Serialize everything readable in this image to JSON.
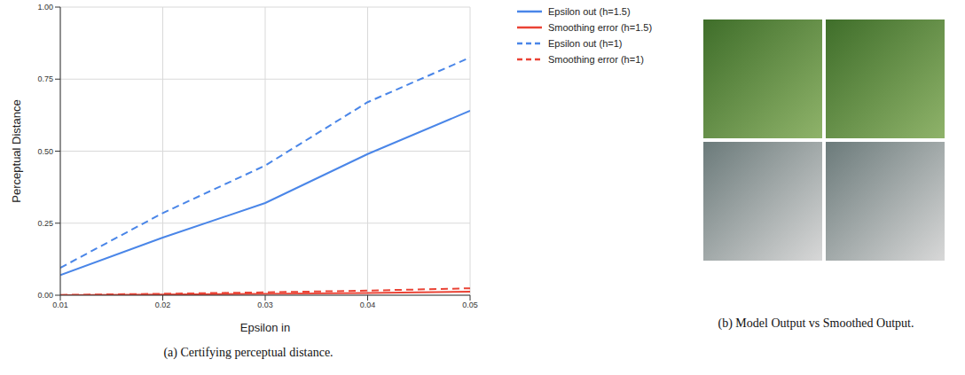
{
  "chart_data": {
    "type": "line",
    "title": "(a) Certifying perceptual distance.",
    "x_label": "Epsilon in",
    "y_label": "Perceptual Distance",
    "x": [
      0.01,
      0.02,
      0.03,
      0.04,
      0.05
    ],
    "xlim": [
      0.01,
      0.05
    ],
    "xticks": [
      0.01,
      0.02,
      0.03,
      0.04,
      0.05
    ],
    "ylim": [
      0,
      1
    ],
    "yticks": [
      {
        "value": 0,
        "label": "0.00"
      },
      0.25,
      {
        "value": 0.5,
        "label": "0.50"
      },
      0.75,
      {
        "value": 1,
        "label": "1.00"
      }
    ],
    "grid": true,
    "legend": "top-right",
    "series": [
      {
        "name": "Epsilon out (h=1.5)",
        "color": "#4a86e8",
        "line_style": "solid",
        "values": [
          0.07,
          0.2,
          0.32,
          0.49,
          0.64
        ]
      },
      {
        "name": "Smoothing error (h=1.5)",
        "color": "#ea4335",
        "line_style": "solid",
        "values": [
          0.0,
          0.002,
          0.005,
          0.008,
          0.012
        ]
      },
      {
        "name": "Epsilon out (h=1)",
        "color": "#4a86e8",
        "line_style": "dashed",
        "values": [
          0.095,
          0.285,
          0.45,
          0.67,
          0.825
        ]
      },
      {
        "name": "Smoothing error (h=1)",
        "color": "#ea4335",
        "line_style": "dashed",
        "values": [
          0.001,
          0.005,
          0.01,
          0.016,
          0.024
        ]
      }
    ]
  },
  "image_panel": {
    "caption": "(b) Model Output vs Smoothed Output."
  }
}
